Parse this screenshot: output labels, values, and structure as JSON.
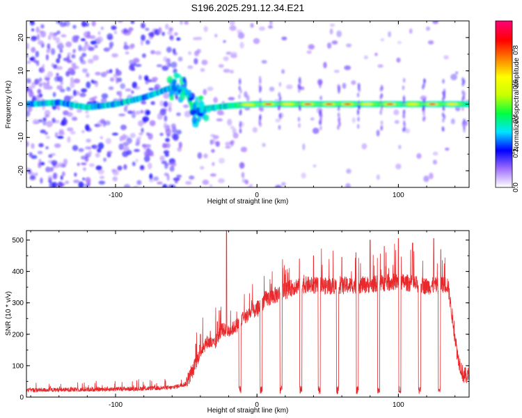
{
  "figure_title": "S196.2025.291.12.34.E21",
  "chart_data": [
    {
      "type": "heatmap",
      "title": "S196.2025.291.12.34.E21",
      "xlabel": "Height of straight line (km)",
      "ylabel": "Frequency (Hz)",
      "xlim": [
        -163,
        150
      ],
      "ylim": [
        -25,
        25
      ],
      "xticks": [
        -100,
        0,
        100
      ],
      "yticks": [
        -20,
        -10,
        0,
        10,
        20
      ],
      "tick_labels_x": [
        "-100",
        "0",
        "100"
      ],
      "tick_labels_y": [
        "-20",
        "-10",
        "0",
        "10",
        "20"
      ],
      "colorbar": {
        "label": "Normalized spectral amplitude",
        "range": [
          0,
          0.97
        ],
        "ticks": [
          0.0,
          0.2,
          0.4,
          0.6,
          0.8
        ],
        "tick_labels": [
          "0.0",
          "0.2",
          "0.4",
          "0.6",
          "0.8"
        ],
        "colormap_stops": [
          "#ffffff",
          "#a070ff",
          "#0000ff",
          "#00e5ff",
          "#00ff40",
          "#c8ff00",
          "#ffff00",
          "#ff8000",
          "#ff0000",
          "#ff0070"
        ]
      },
      "ridge_frequency_hz": [
        [
          -163,
          0
        ],
        [
          -140,
          0.5
        ],
        [
          -120,
          -1
        ],
        [
          -100,
          0
        ],
        [
          -80,
          2
        ],
        [
          -60,
          5
        ],
        [
          -50,
          4
        ],
        [
          -45,
          -2
        ],
        [
          -40,
          -1.5
        ],
        [
          -30,
          -1
        ],
        [
          -20,
          -0.5
        ],
        [
          0,
          0
        ],
        [
          150,
          0
        ]
      ],
      "peak_segments_km": [
        -12,
        2,
        16,
        30,
        45,
        58,
        72,
        88,
        104,
        118,
        132,
        146
      ]
    },
    {
      "type": "line",
      "title": "",
      "xlabel": "Height of straight line (km)",
      "ylabel": "SNR (10 * v/v)",
      "xlim": [
        -163,
        150
      ],
      "ylim": [
        0,
        530
      ],
      "xticks": [
        -100,
        0,
        100
      ],
      "yticks": [
        0,
        100,
        200,
        300,
        400,
        500
      ],
      "tick_labels_x": [
        "-100",
        "0",
        "100"
      ],
      "tick_labels_y": [
        "0",
        "100",
        "200",
        "300",
        "400",
        "500"
      ],
      "series": [
        {
          "name": "SNR",
          "color": "#e8282b",
          "envelope": [
            [
              -163,
              20
            ],
            [
              -120,
              22
            ],
            [
              -80,
              25
            ],
            [
              -60,
              28
            ],
            [
              -50,
              40
            ],
            [
              -45,
              80
            ],
            [
              -40,
              140
            ],
            [
              -35,
              170
            ],
            [
              -30,
              160
            ],
            [
              -25,
              210
            ],
            [
              -20,
              200
            ],
            [
              -15,
              220
            ],
            [
              -10,
              240
            ],
            [
              -5,
              260
            ],
            [
              0,
              270
            ],
            [
              5,
              300
            ],
            [
              10,
              310
            ],
            [
              20,
              330
            ],
            [
              30,
              350
            ],
            [
              50,
              345
            ],
            [
              80,
              350
            ],
            [
              100,
              360
            ],
            [
              120,
              345
            ],
            [
              135,
              350
            ],
            [
              138,
              250
            ],
            [
              142,
              120
            ],
            [
              146,
              60
            ],
            [
              150,
              60
            ]
          ],
          "spike_km": [
            [
              -21.5,
              530
            ],
            [
              -40,
              200
            ],
            [
              -33,
              210
            ],
            [
              -28,
              240
            ],
            [
              -10,
              270
            ],
            [
              -3,
              300
            ],
            [
              10,
              360
            ],
            [
              20,
              390
            ],
            [
              30,
              440
            ],
            [
              40,
              450
            ],
            [
              60,
              445
            ],
            [
              70,
              460
            ],
            [
              80,
              500
            ],
            [
              90,
              480
            ],
            [
              100,
              505
            ],
            [
              110,
              490
            ],
            [
              125,
              505
            ],
            [
              130,
              470
            ]
          ],
          "dropouts_km": [
            -12,
            3,
            17,
            31,
            44,
            57,
            71,
            86,
            101,
            115,
            129
          ]
        }
      ]
    }
  ]
}
